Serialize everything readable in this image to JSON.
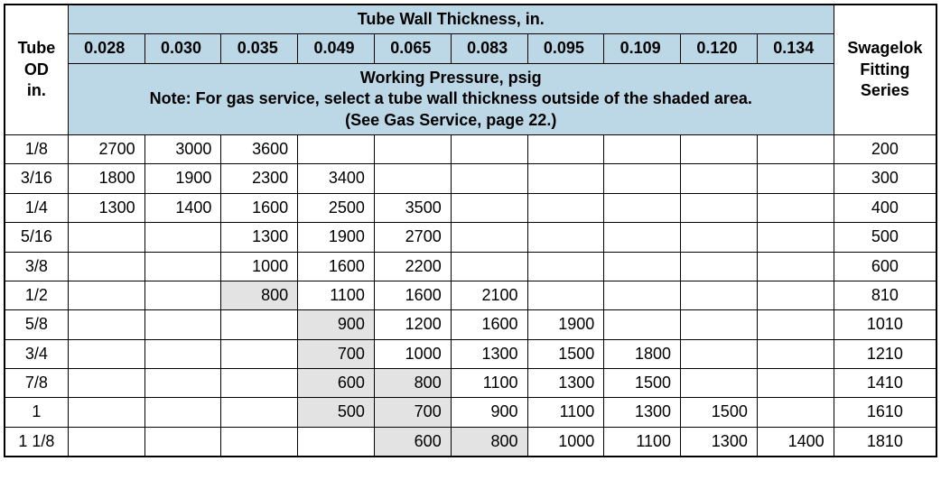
{
  "colors": {
    "header_bg": "#bcd7e6",
    "shaded_bg": "#e3e3e3",
    "border": "#000000",
    "background": "#ffffff"
  },
  "header": {
    "mainTitle_b": "Tube Wall Thickness,",
    "mainTitle_r": " in.",
    "tubeOD_l1": "Tube",
    "tubeOD_l2": "OD",
    "tubeOD_l3": "in.",
    "fitting_l1": "Swagelok",
    "fitting_l2": "Fitting",
    "fitting_l3": "Series",
    "wp_b": "Working Pressure",
    "wp_r": ", psig",
    "note_b1": "Note:",
    "note_r1": " For gas service, select a tube wall thickness outside of the shaded area.",
    "note_r2a": "(See ",
    "note_b2": "Gas Service,",
    "note_r2b": " page 22.)"
  },
  "thicknesses": [
    "0.028",
    "0.030",
    "0.035",
    "0.049",
    "0.065",
    "0.083",
    "0.095",
    "0.109",
    "0.120",
    "0.134"
  ],
  "rows": [
    {
      "od": "1/8",
      "series": "200",
      "cells": [
        {
          "v": "2700"
        },
        {
          "v": "3000"
        },
        {
          "v": "3600"
        },
        {
          "v": ""
        },
        {
          "v": ""
        },
        {
          "v": ""
        },
        {
          "v": ""
        },
        {
          "v": ""
        },
        {
          "v": ""
        },
        {
          "v": ""
        }
      ]
    },
    {
      "od": "3/16",
      "series": "300",
      "cells": [
        {
          "v": "1800"
        },
        {
          "v": "1900"
        },
        {
          "v": "2300"
        },
        {
          "v": "3400"
        },
        {
          "v": ""
        },
        {
          "v": ""
        },
        {
          "v": ""
        },
        {
          "v": ""
        },
        {
          "v": ""
        },
        {
          "v": ""
        }
      ]
    },
    {
      "od": "1/4",
      "series": "400",
      "cells": [
        {
          "v": "1300"
        },
        {
          "v": "1400"
        },
        {
          "v": "1600"
        },
        {
          "v": "2500"
        },
        {
          "v": "3500"
        },
        {
          "v": ""
        },
        {
          "v": ""
        },
        {
          "v": ""
        },
        {
          "v": ""
        },
        {
          "v": ""
        }
      ]
    },
    {
      "od": "5/16",
      "series": "500",
      "cells": [
        {
          "v": ""
        },
        {
          "v": ""
        },
        {
          "v": "1300"
        },
        {
          "v": "1900"
        },
        {
          "v": "2700"
        },
        {
          "v": ""
        },
        {
          "v": ""
        },
        {
          "v": ""
        },
        {
          "v": ""
        },
        {
          "v": ""
        }
      ]
    },
    {
      "od": "3/8",
      "series": "600",
      "cells": [
        {
          "v": ""
        },
        {
          "v": ""
        },
        {
          "v": "1000"
        },
        {
          "v": "1600"
        },
        {
          "v": "2200"
        },
        {
          "v": ""
        },
        {
          "v": ""
        },
        {
          "v": ""
        },
        {
          "v": ""
        },
        {
          "v": ""
        }
      ]
    },
    {
      "od": "1/2",
      "series": "810",
      "cells": [
        {
          "v": ""
        },
        {
          "v": ""
        },
        {
          "v": "800",
          "s": true
        },
        {
          "v": "1100"
        },
        {
          "v": "1600"
        },
        {
          "v": "2100"
        },
        {
          "v": ""
        },
        {
          "v": ""
        },
        {
          "v": ""
        },
        {
          "v": ""
        }
      ]
    },
    {
      "od": "5/8",
      "series": "1010",
      "cells": [
        {
          "v": ""
        },
        {
          "v": ""
        },
        {
          "v": ""
        },
        {
          "v": "900",
          "s": true
        },
        {
          "v": "1200"
        },
        {
          "v": "1600"
        },
        {
          "v": "1900"
        },
        {
          "v": ""
        },
        {
          "v": ""
        },
        {
          "v": ""
        }
      ]
    },
    {
      "od": "3/4",
      "series": "1210",
      "cells": [
        {
          "v": ""
        },
        {
          "v": ""
        },
        {
          "v": ""
        },
        {
          "v": "700",
          "s": true
        },
        {
          "v": "1000"
        },
        {
          "v": "1300"
        },
        {
          "v": "1500"
        },
        {
          "v": "1800"
        },
        {
          "v": ""
        },
        {
          "v": ""
        }
      ]
    },
    {
      "od": "7/8",
      "series": "1410",
      "cells": [
        {
          "v": ""
        },
        {
          "v": ""
        },
        {
          "v": ""
        },
        {
          "v": "600",
          "s": true
        },
        {
          "v": "800",
          "s": true
        },
        {
          "v": "1100"
        },
        {
          "v": "1300"
        },
        {
          "v": "1500"
        },
        {
          "v": ""
        },
        {
          "v": ""
        }
      ]
    },
    {
      "od": "1",
      "series": "1610",
      "cells": [
        {
          "v": ""
        },
        {
          "v": ""
        },
        {
          "v": ""
        },
        {
          "v": "500",
          "s": true
        },
        {
          "v": "700",
          "s": true
        },
        {
          "v": "900"
        },
        {
          "v": "1100"
        },
        {
          "v": "1300"
        },
        {
          "v": "1500"
        },
        {
          "v": ""
        }
      ]
    },
    {
      "od": "1 1/8",
      "series": "1810",
      "cells": [
        {
          "v": ""
        },
        {
          "v": ""
        },
        {
          "v": ""
        },
        {
          "v": ""
        },
        {
          "v": "600",
          "s": true
        },
        {
          "v": "800",
          "s": true
        },
        {
          "v": "1000"
        },
        {
          "v": "1100"
        },
        {
          "v": "1300"
        },
        {
          "v": "1400"
        }
      ]
    }
  ]
}
